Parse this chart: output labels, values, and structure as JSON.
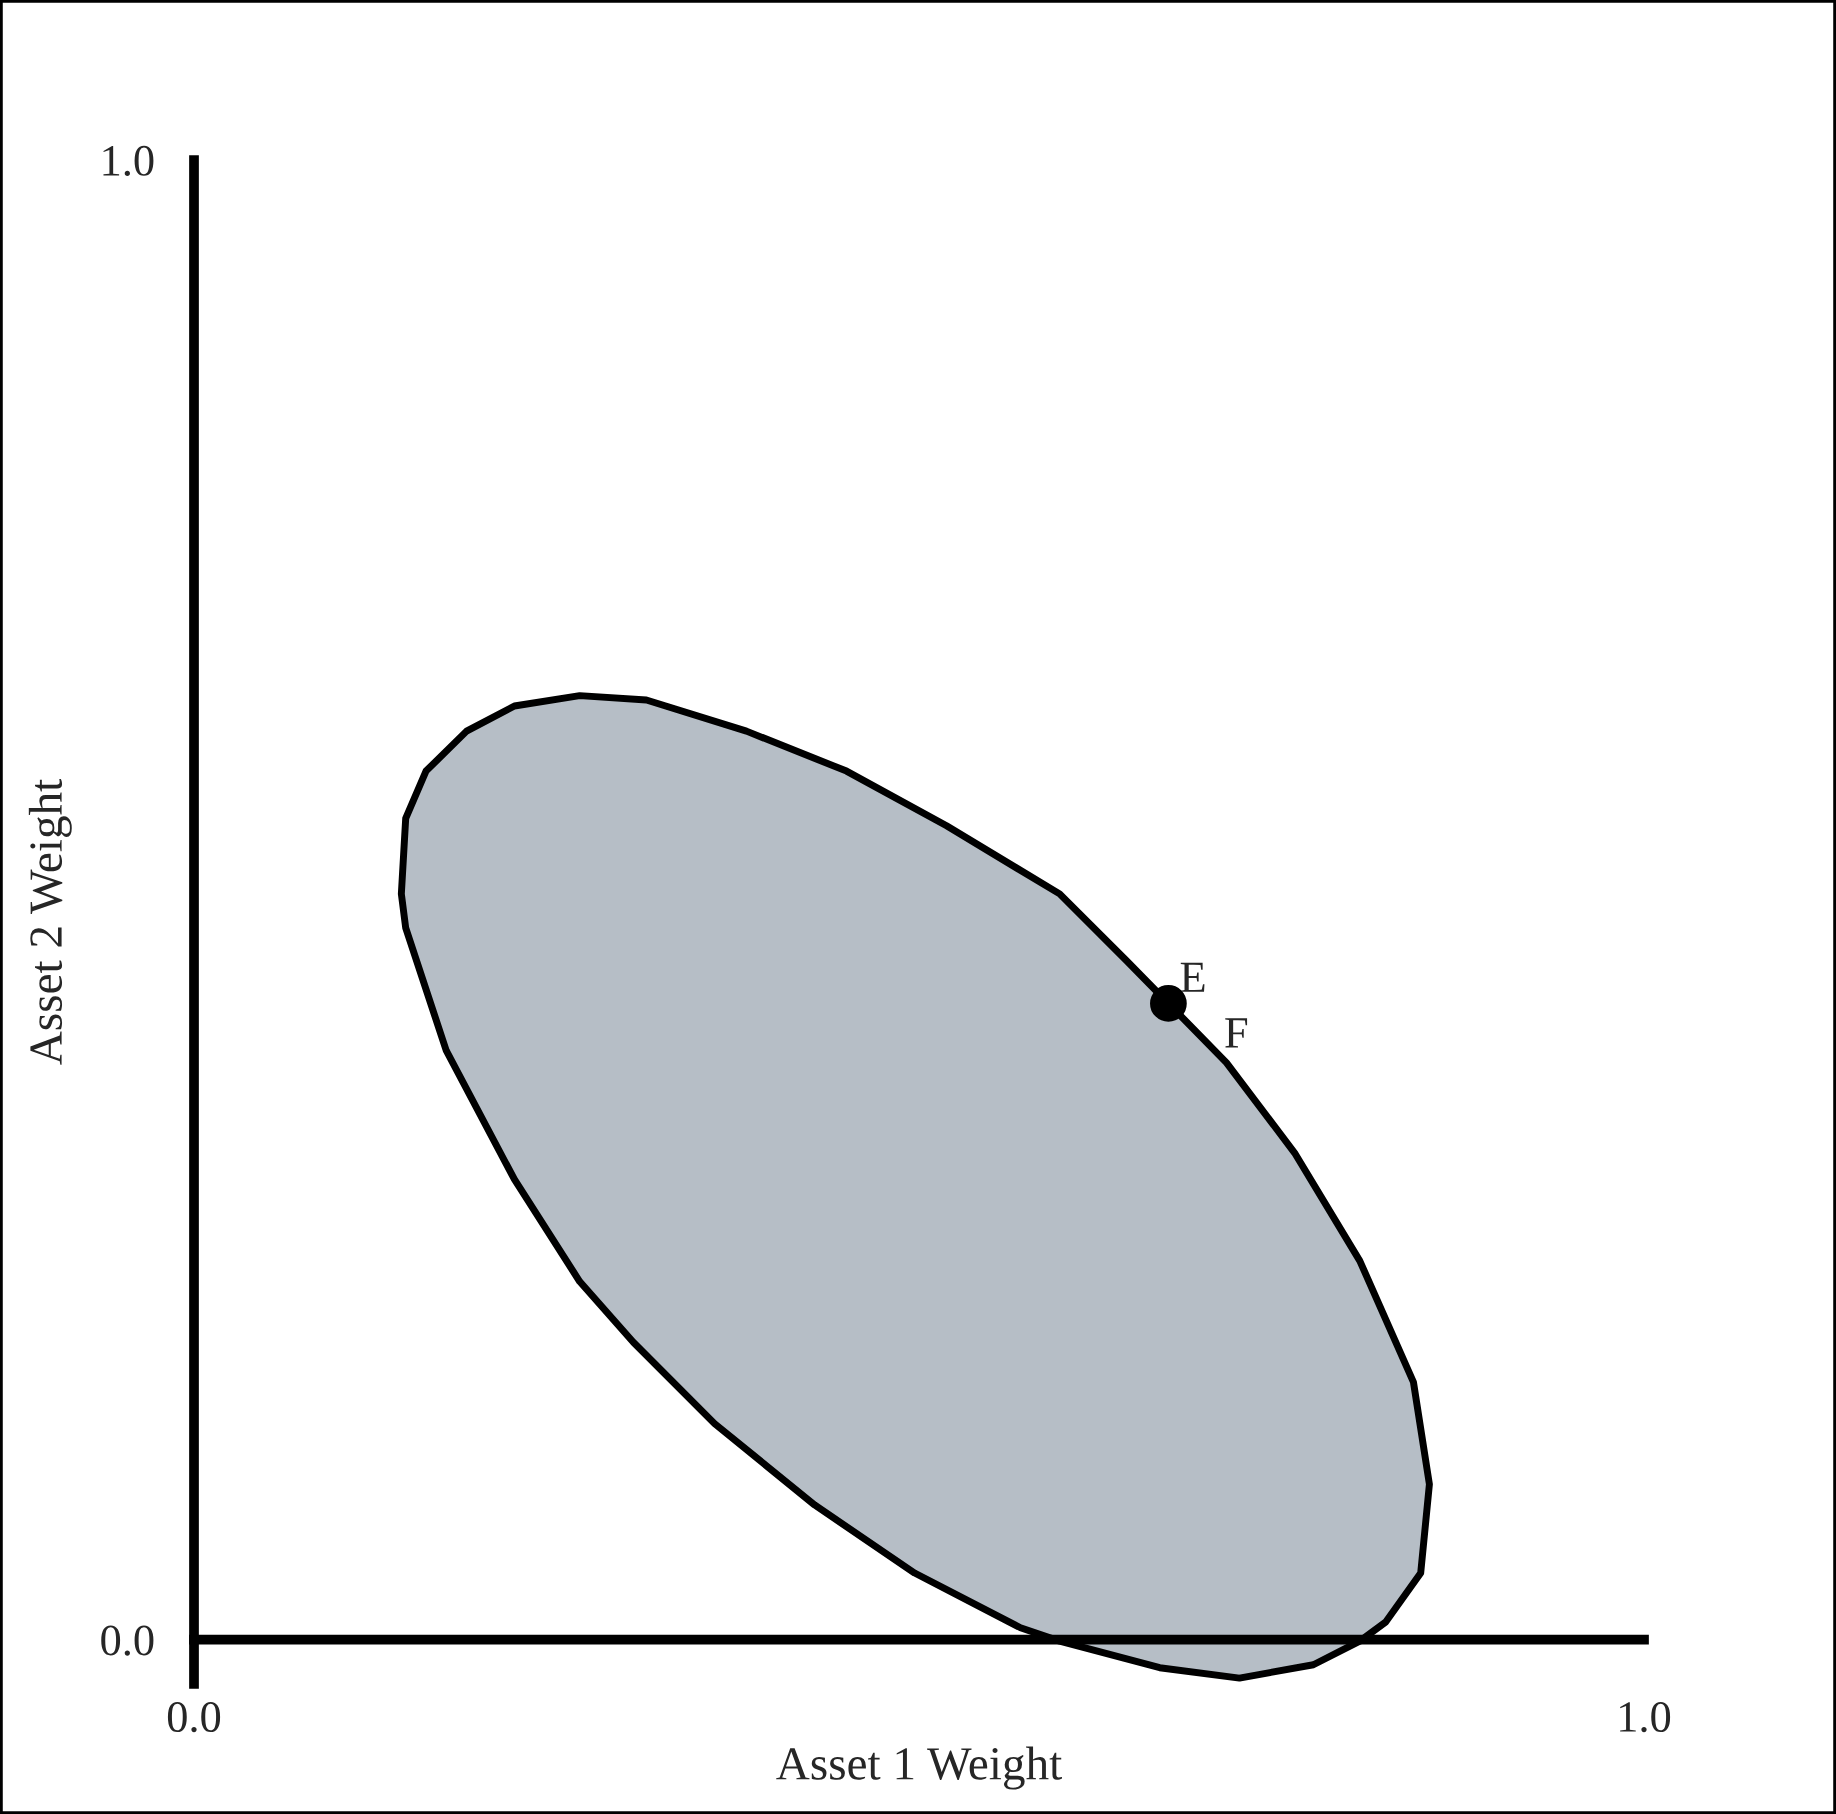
{
  "chart_data": {
    "type": "area",
    "xlabel": "Asset 1 Weight",
    "ylabel": "Asset 2 Weight",
    "xlim": [
      0,
      1.0
    ],
    "ylim": [
      -0.03,
      1.0
    ],
    "xticks": [
      {
        "value": 0,
        "label": "0.0"
      },
      {
        "value": 1.0,
        "label": "1.0"
      }
    ],
    "yticks": [
      {
        "value": 0,
        "label": "0.0"
      },
      {
        "value": 1.0,
        "label": "1.0"
      }
    ],
    "series": [
      {
        "color": "#b6bec6",
        "x": [
          0.143,
          0.146,
          0.16,
          0.188,
          0.221,
          0.266,
          0.312,
          0.381,
          0.45,
          0.519,
          0.597,
          0.643,
          0.712,
          0.759,
          0.804,
          0.841,
          0.852,
          0.846,
          0.822,
          0.804,
          0.772,
          0.721,
          0.666,
          0.597,
          0.57,
          0.497,
          0.428,
          0.359,
          0.303,
          0.266,
          0.221,
          0.174,
          0.146,
          0.143
        ],
        "values": [
          0.504,
          0.555,
          0.587,
          0.614,
          0.631,
          0.638,
          0.635,
          0.614,
          0.587,
          0.55,
          0.504,
          0.459,
          0.39,
          0.329,
          0.256,
          0.174,
          0.105,
          0.045,
          0.012,
          -0.001,
          -0.017,
          -0.026,
          -0.019,
          -0.001,
          0.008,
          0.045,
          0.091,
          0.146,
          0.201,
          0.242,
          0.311,
          0.398,
          0.481,
          0.504
        ]
      },
      {
        "type": "scatter",
        "color": "#000000",
        "marker": "circle",
        "x": [
          0.672
        ],
        "values": [
          0.43
        ]
      }
    ],
    "annotations": [
      {
        "text": "E",
        "x": 0.672,
        "y": 0.43
      },
      {
        "text": "F",
        "x": 0.672,
        "y": 0.43
      }
    ]
  }
}
